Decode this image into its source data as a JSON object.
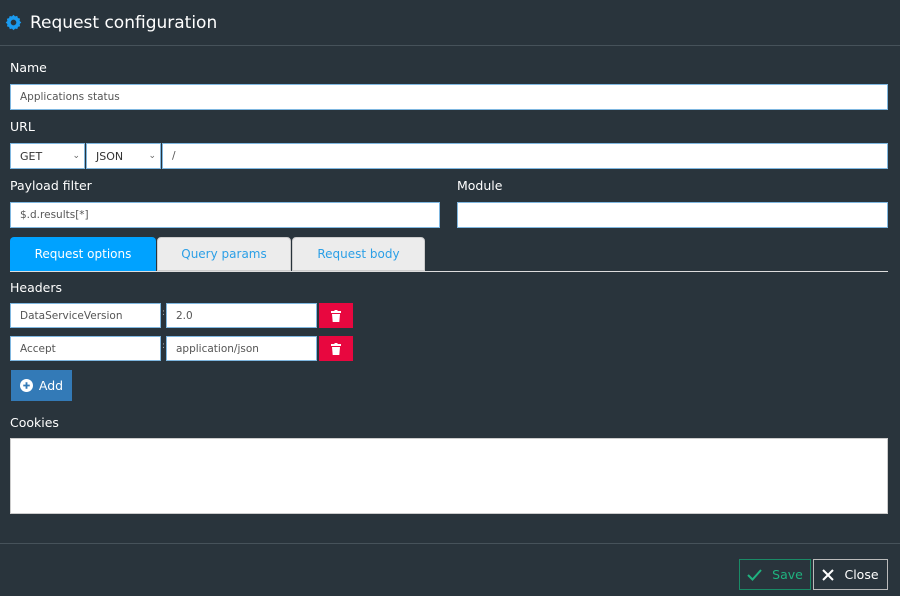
{
  "header": {
    "title": "Request configuration",
    "icon": "gear-icon",
    "icon_color": "#1a9bf0"
  },
  "name": {
    "label": "Name",
    "value": "Applications status"
  },
  "url": {
    "label": "URL",
    "method": "GET",
    "format": "JSON",
    "path": "/"
  },
  "payload_filter": {
    "label": "Payload filter",
    "value": "$.d.results[*]"
  },
  "module": {
    "label": "Module",
    "value": ""
  },
  "tabs": [
    {
      "label": "Request options",
      "active": true
    },
    {
      "label": "Query params",
      "active": false
    },
    {
      "label": "Request body",
      "active": false
    }
  ],
  "headers": {
    "label": "Headers",
    "rows": [
      {
        "key": "DataServiceVersion",
        "value": "2.0"
      },
      {
        "key": "Accept",
        "value": "application/json"
      }
    ],
    "add_label": "Add"
  },
  "cookies": {
    "label": "Cookies",
    "value": ""
  },
  "footer": {
    "save_label": "Save",
    "close_label": "Close"
  }
}
